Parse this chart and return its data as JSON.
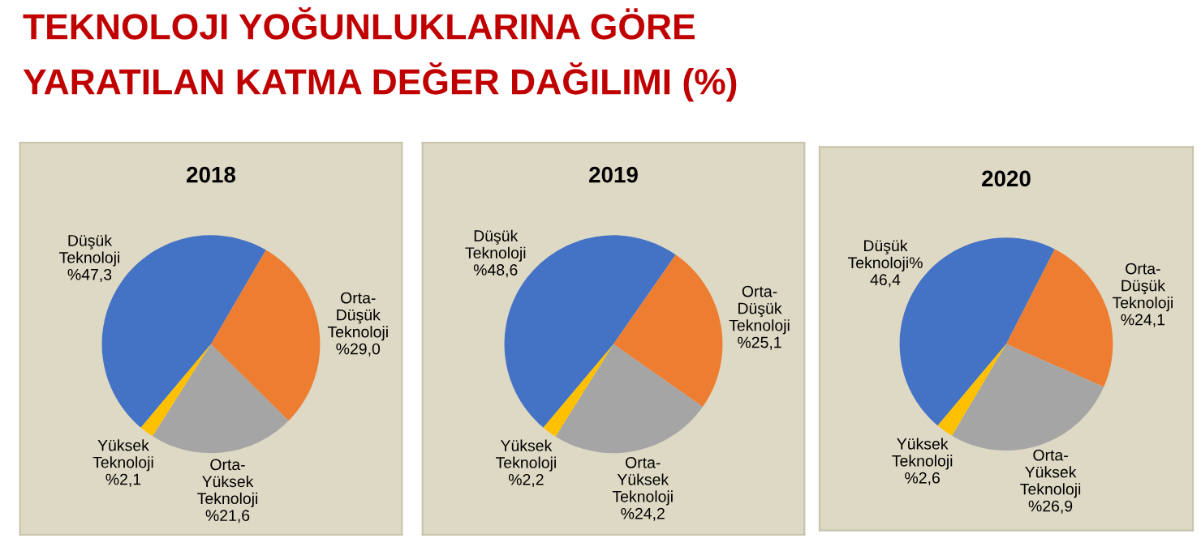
{
  "chart_data": [
    {
      "type": "pie",
      "title": "2018",
      "annotations": [
        "TEKNOLOJI YOĞUNLUKLARINA GÖRE\nYARATILAN KATMA DEĞER DAĞILIMI (%)"
      ],
      "categories": [
        "Düşük\nTeknoloji",
        "Orta-\nDüşük\nTeknoloji",
        "Orta-\nYüksek\nTeknoloji",
        "Yüksek\nTeknoloji"
      ],
      "values": [
        47.3,
        29.0,
        21.6,
        2.1
      ],
      "value_labels": [
        "%47,3",
        "%29,0",
        "%21,6",
        "%2,1"
      ],
      "colors": [
        "#4472c4",
        "#ed7d31",
        "#a5a5a5",
        "#ffc000"
      ]
    },
    {
      "type": "pie",
      "title": "2019",
      "categories": [
        "Düşük\nTeknoloji",
        "Orta-\nDüşük\nTeknoloji",
        "Orta-\nYüksek\nTeknoloji",
        "Yüksek\nTeknoloji"
      ],
      "values": [
        48.6,
        25.1,
        24.2,
        2.2
      ],
      "value_labels": [
        "%48,6",
        "%25,1",
        "%24,2",
        "%2,2"
      ],
      "colors": [
        "#4472c4",
        "#ed7d31",
        "#a5a5a5",
        "#ffc000"
      ]
    },
    {
      "type": "pie",
      "title": "2020",
      "categories": [
        "Düşük\nTeknoloji%",
        "Orta-\nDüşük\nTeknoloji",
        "Orta-\nYüksek\nTeknoloji",
        "Yüksek\nTeknoloji"
      ],
      "values": [
        46.4,
        24.1,
        26.9,
        2.6
      ],
      "value_labels": [
        "46,4",
        "%24,1",
        "%26,9",
        "%2,6"
      ],
      "colors": [
        "#4472c4",
        "#ed7d31",
        "#a5a5a5",
        "#ffc000"
      ]
    }
  ]
}
